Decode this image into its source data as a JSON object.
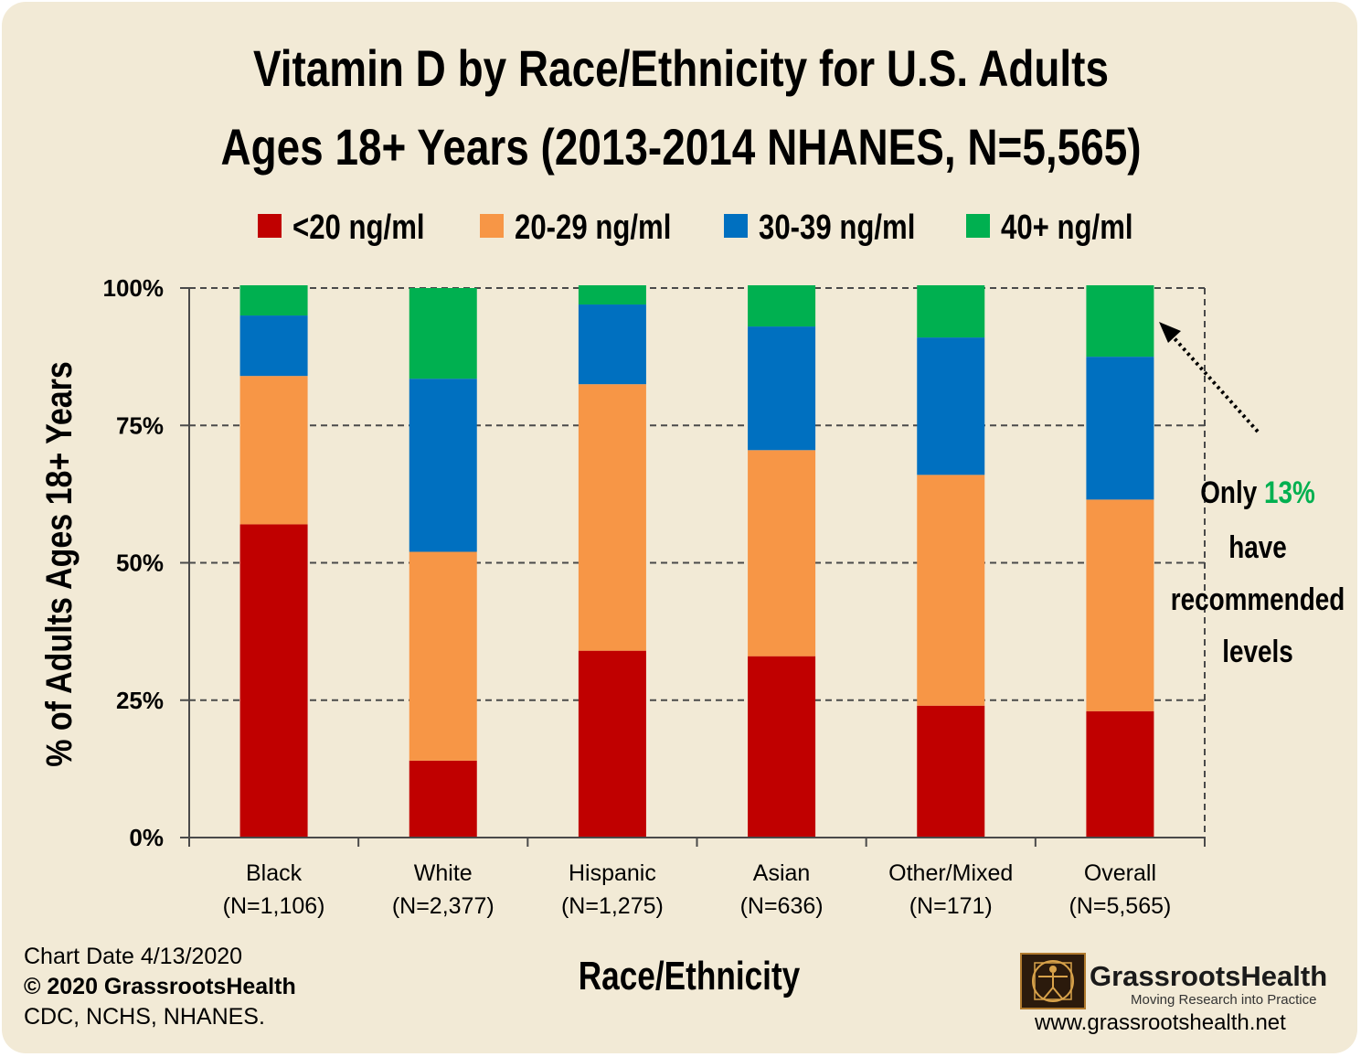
{
  "chart_data": {
    "type": "bar",
    "stacked": true,
    "title_line1": "Vitamin D by Race/Ethnicity for U.S. Adults",
    "title_line2": "Ages 18+ Years (2013-2014 NHANES, N=5,565)",
    "xlabel": "Race/Ethnicity",
    "ylabel": "% of Adults Ages 18+ Years",
    "ylim": [
      0,
      100
    ],
    "yticks": [
      "0%",
      "25%",
      "50%",
      "75%",
      "100%"
    ],
    "grid": "dashed horizontal",
    "legend_position": "top",
    "categories": [
      {
        "name": "Black",
        "n": "(N=1,106)"
      },
      {
        "name": "White",
        "n": "(N=2,377)"
      },
      {
        "name": "Hispanic",
        "n": "(N=1,275)"
      },
      {
        "name": "Asian",
        "n": "(N=636)"
      },
      {
        "name": "Other/Mixed",
        "n": "(N=171)"
      },
      {
        "name": "Overall",
        "n": "(N=5,565)"
      }
    ],
    "series": [
      {
        "name": "<20 ng/ml",
        "color": "#c00000",
        "values": [
          57,
          14,
          34,
          33,
          24,
          23
        ]
      },
      {
        "name": "20-29 ng/ml",
        "color": "#f79646",
        "values": [
          27,
          38,
          48.5,
          37.5,
          42,
          38.5
        ]
      },
      {
        "name": "30-39 ng/ml",
        "color": "#0070c0",
        "values": [
          11,
          31.5,
          14.5,
          22.5,
          25,
          26
        ]
      },
      {
        "name": "40+ ng/ml",
        "color": "#00b050",
        "values": [
          5.5,
          16.5,
          3.5,
          7.5,
          9.5,
          13
        ]
      }
    ]
  },
  "annotation": {
    "prefix": "Only",
    "highlight": "13%",
    "highlight_color": "#00b050",
    "line2": "have",
    "line3": "recommended",
    "line4": "levels"
  },
  "footer": {
    "line1": "Chart Date 4/13/2020",
    "line2": "© 2020 GrassrootsHealth",
    "line3": "CDC, NCHS, NHANES."
  },
  "logo": {
    "name": "GrassrootsHealth",
    "tagline": "Moving Research into Practice",
    "url": "www.grassrootshealth.net"
  }
}
